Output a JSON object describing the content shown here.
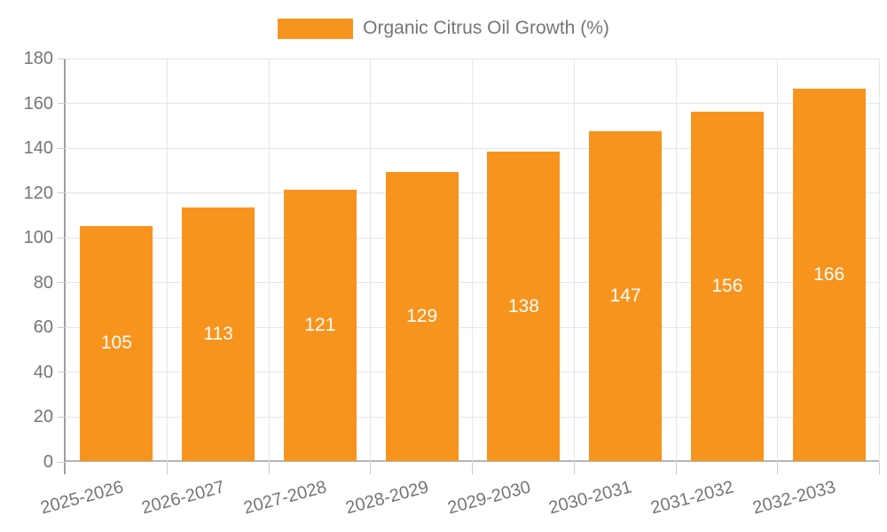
{
  "chart_data": {
    "type": "bar",
    "title": "",
    "legend": {
      "label": "Organic Citrus Oil Growth (%)",
      "position": "top-center"
    },
    "categories": [
      "2025-2026",
      "2026-2027",
      "2027-2028",
      "2028-2029",
      "2029-2030",
      "2030-2031",
      "2031-2032",
      "2032-2033"
    ],
    "series": [
      {
        "name": "Organic Citrus Oil Growth (%)",
        "values": [
          105,
          113,
          121,
          129,
          138,
          147,
          156,
          166
        ]
      }
    ],
    "bar_value_labels": [
      "105",
      "113",
      "121",
      "129",
      "138",
      "147",
      "156",
      "166"
    ],
    "xlabel": "",
    "ylabel": "",
    "ylim": [
      0,
      180
    ],
    "ytick_step": 20,
    "ytick_labels": [
      "0",
      "20",
      "40",
      "60",
      "80",
      "100",
      "120",
      "140",
      "160",
      "180"
    ],
    "grid": true,
    "x_label_rotation_deg": -15,
    "colors": {
      "bar": "#f7941e",
      "bar_label": "#ffffff",
      "grid": "#e6e6e6",
      "axis": "#9e9e9e",
      "baseline": "#b6b6b6",
      "tick": "#cccccc",
      "label": "#757575",
      "background": "#ffffff"
    }
  }
}
